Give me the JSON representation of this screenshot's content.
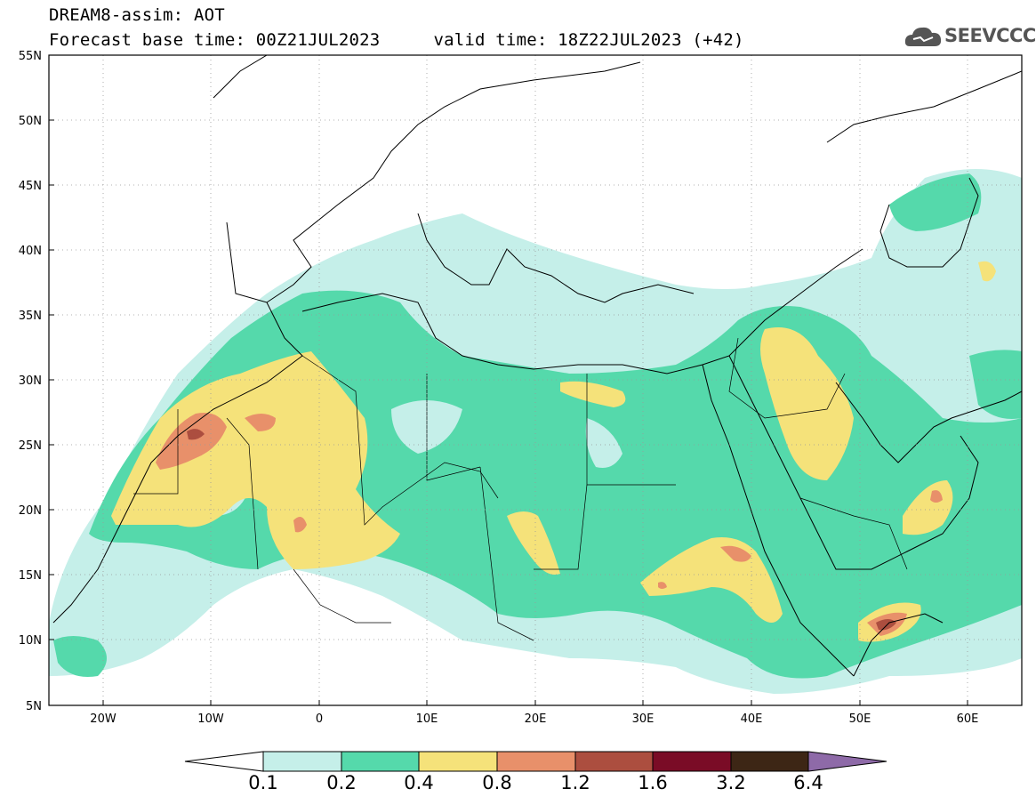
{
  "title": {
    "line1": "DREAM8-assim: AOT",
    "base_time": "Forecast base time: 00Z21JUL2023",
    "valid_time": "valid time: 18Z22JUL2023 (+42)"
  },
  "logo": {
    "text": "SEEVCCC",
    "icon": "cloud-icon"
  },
  "axes": {
    "lat_labels": [
      "55N",
      "50N",
      "45N",
      "40N",
      "35N",
      "30N",
      "25N",
      "20N",
      "15N",
      "10N",
      "5N"
    ],
    "lon_labels": [
      "20W",
      "10W",
      "0",
      "10E",
      "20E",
      "30E",
      "40E",
      "50E",
      "60E"
    ]
  },
  "colorbar": {
    "labels": [
      "0.1",
      "0.2",
      "0.4",
      "0.8",
      "1.2",
      "1.6",
      "3.2",
      "6.4"
    ],
    "colors": [
      "#ffffff",
      "#c5efe9",
      "#55d9ab",
      "#f5e27a",
      "#e8906a",
      "#ac4e3f",
      "#7a0c26",
      "#3d2615",
      "#8e6aa8"
    ]
  }
}
